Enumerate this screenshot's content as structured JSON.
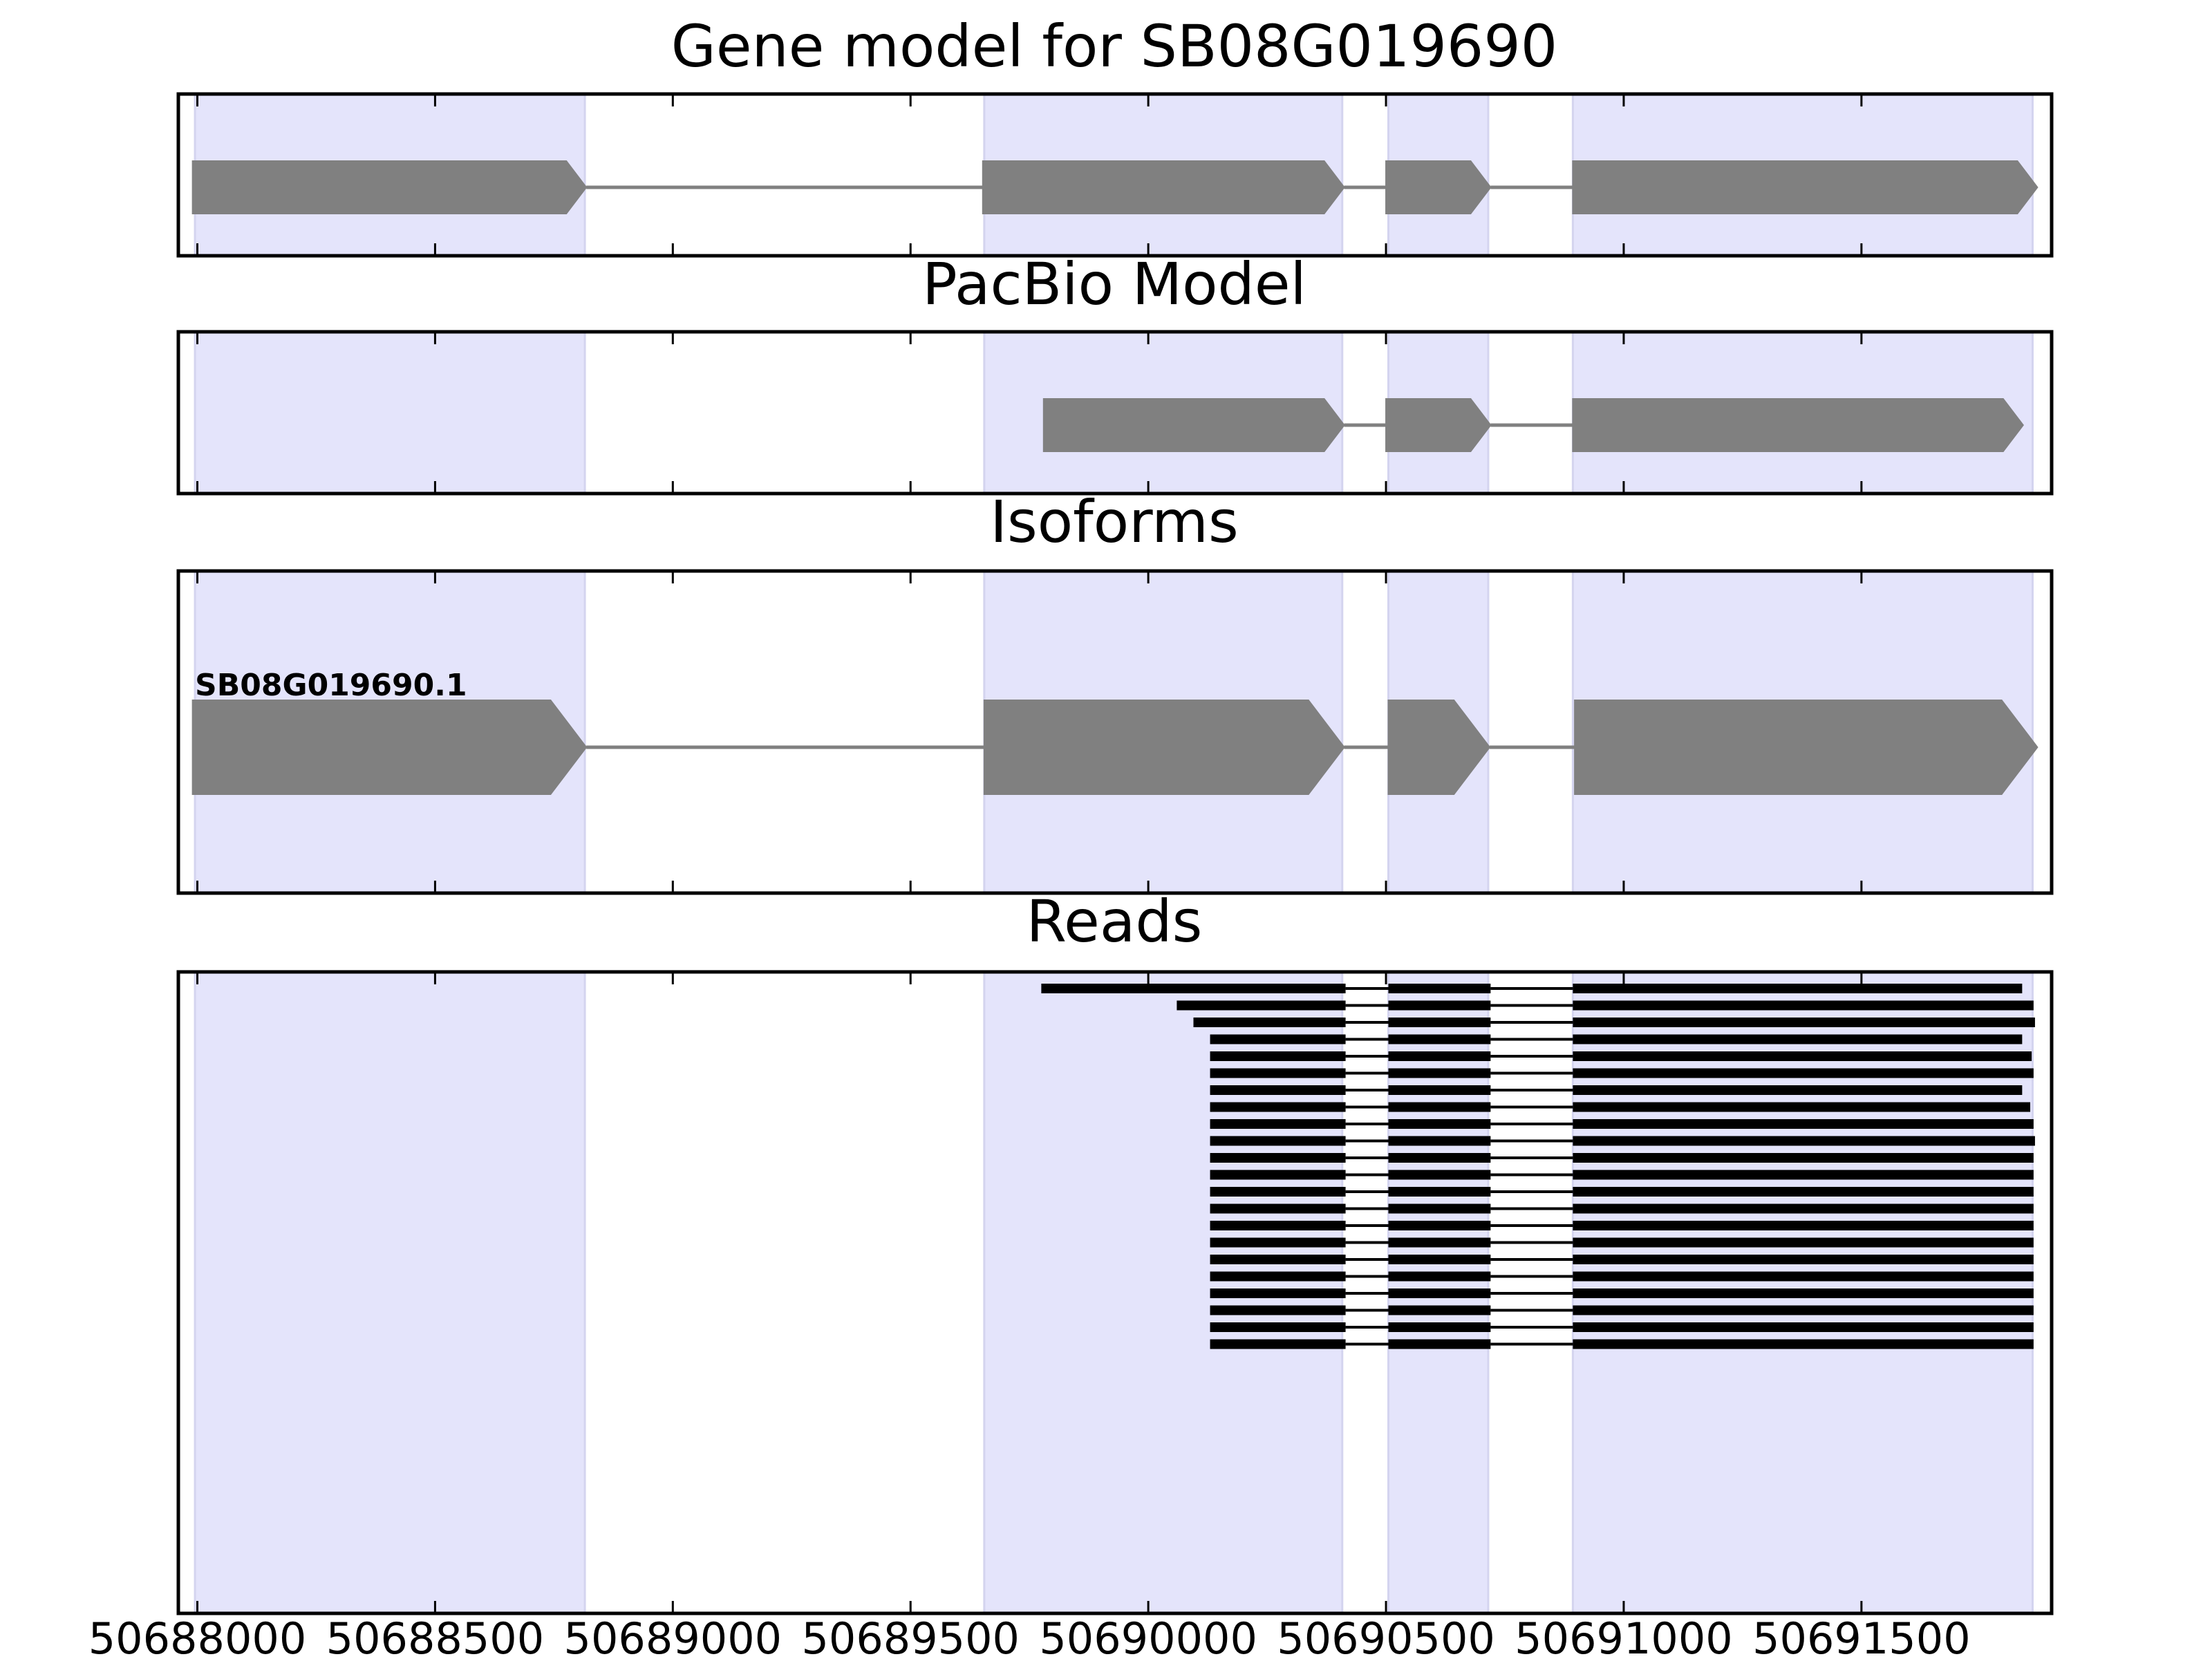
{
  "chart_data": {
    "type": "gene-track",
    "x_ticks": [
      "50688000",
      "50688500",
      "50689000",
      "50689500",
      "50690000",
      "50690500",
      "50691000",
      "50691500"
    ],
    "xlim": [
      50687960,
      50691900
    ],
    "exon_regions": [
      [
        50687995,
        50688815
      ],
      [
        50689655,
        50690408
      ],
      [
        50690505,
        50690715
      ],
      [
        50690893,
        50691860
      ]
    ],
    "panels": [
      {
        "id": "gene-model",
        "title": "Gene model for SB08G019690",
        "exons": [
          [
            50687990,
            50688818
          ],
          [
            50689652,
            50690412
          ],
          [
            50690500,
            50690720
          ],
          [
            50690893,
            50691870
          ]
        ]
      },
      {
        "id": "pacbio-model",
        "title": "PacBio Model",
        "exons": [
          [
            50689780,
            50690412
          ],
          [
            50690500,
            50690720
          ],
          [
            50690893,
            50691840
          ]
        ]
      },
      {
        "id": "isoforms",
        "title": "Isoforms",
        "isoform_label": "SB08G019690.1",
        "exons": [
          [
            50687990,
            50688818
          ],
          [
            50689655,
            50690412
          ],
          [
            50690505,
            50690718
          ],
          [
            50690897,
            50691870
          ]
        ]
      },
      {
        "id": "reads",
        "title": "Reads",
        "reads": [
          [
            [
              50689775,
              50690415
            ],
            [
              50690505,
              50690720
            ],
            [
              50690893,
              50691838
            ]
          ],
          [
            [
              50690060,
              50690415
            ],
            [
              50690505,
              50690720
            ],
            [
              50690893,
              50691862
            ]
          ],
          [
            [
              50690095,
              50690415
            ],
            [
              50690505,
              50690720
            ],
            [
              50690893,
              50691865
            ]
          ],
          [
            [
              50690130,
              50690415
            ],
            [
              50690505,
              50690720
            ],
            [
              50690893,
              50691838
            ]
          ],
          [
            [
              50690130,
              50690415
            ],
            [
              50690505,
              50690720
            ],
            [
              50690893,
              50691858
            ]
          ],
          [
            [
              50690130,
              50690415
            ],
            [
              50690505,
              50690720
            ],
            [
              50690893,
              50691862
            ]
          ],
          [
            [
              50690130,
              50690415
            ],
            [
              50690505,
              50690720
            ],
            [
              50690893,
              50691838
            ]
          ],
          [
            [
              50690130,
              50690415
            ],
            [
              50690505,
              50690720
            ],
            [
              50690893,
              50691855
            ]
          ],
          [
            [
              50690130,
              50690415
            ],
            [
              50690505,
              50690720
            ],
            [
              50690893,
              50691862
            ]
          ],
          [
            [
              50690130,
              50690415
            ],
            [
              50690505,
              50690720
            ],
            [
              50690893,
              50691865
            ]
          ],
          [
            [
              50690130,
              50690415
            ],
            [
              50690505,
              50690720
            ],
            [
              50690893,
              50691862
            ]
          ],
          [
            [
              50690130,
              50690415
            ],
            [
              50690505,
              50690720
            ],
            [
              50690893,
              50691862
            ]
          ],
          [
            [
              50690130,
              50690415
            ],
            [
              50690505,
              50690720
            ],
            [
              50690893,
              50691862
            ]
          ],
          [
            [
              50690130,
              50690415
            ],
            [
              50690505,
              50690720
            ],
            [
              50690893,
              50691862
            ]
          ],
          [
            [
              50690130,
              50690415
            ],
            [
              50690505,
              50690720
            ],
            [
              50690893,
              50691862
            ]
          ],
          [
            [
              50690130,
              50690415
            ],
            [
              50690505,
              50690720
            ],
            [
              50690893,
              50691862
            ]
          ],
          [
            [
              50690130,
              50690415
            ],
            [
              50690505,
              50690720
            ],
            [
              50690893,
              50691862
            ]
          ],
          [
            [
              50690130,
              50690415
            ],
            [
              50690505,
              50690720
            ],
            [
              50690893,
              50691862
            ]
          ],
          [
            [
              50690130,
              50690415
            ],
            [
              50690505,
              50690720
            ],
            [
              50690893,
              50691862
            ]
          ],
          [
            [
              50690130,
              50690415
            ],
            [
              50690505,
              50690720
            ],
            [
              50690893,
              50691862
            ]
          ],
          [
            [
              50690130,
              50690415
            ],
            [
              50690505,
              50690720
            ],
            [
              50690893,
              50691862
            ]
          ],
          [
            [
              50690130,
              50690415
            ],
            [
              50690505,
              50690720
            ],
            [
              50690893,
              50691862
            ]
          ]
        ]
      }
    ]
  }
}
